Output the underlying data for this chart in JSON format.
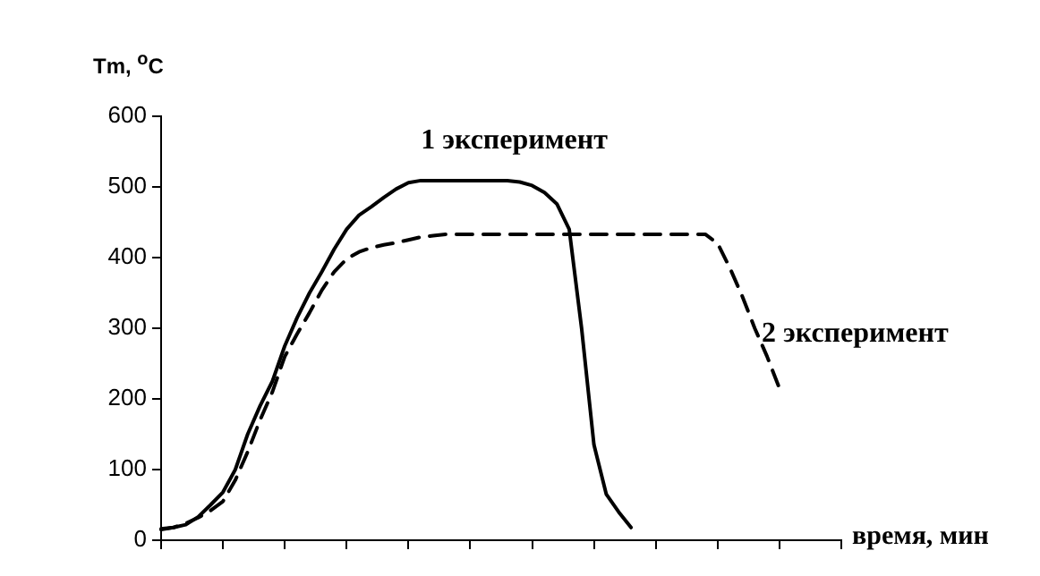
{
  "chart_data": {
    "type": "line",
    "ylabel": "Tm, $^{o}$C",
    "xlabel": "время, мин",
    "categories": [
      null,
      null,
      null,
      null,
      null,
      null,
      null,
      null,
      null,
      null,
      null,
      null,
      null,
      null,
      null,
      null,
      null,
      null,
      null,
      null,
      null,
      null,
      null,
      null,
      null,
      null,
      null,
      null,
      null,
      null,
      null,
      null,
      null,
      null,
      null,
      null,
      null,
      null,
      null,
      null,
      null,
      null,
      null,
      null,
      null,
      null,
      null,
      null,
      null,
      null,
      null,
      null,
      null,
      null,
      null,
      null
    ],
    "series": [
      {
        "name": "1 эксперимент",
        "color": "#000000",
        "line_style": "solid",
        "values": [
          16,
          18,
          22,
          33,
          50,
          68,
          100,
          150,
          190,
          225,
          275,
          315,
          350,
          380,
          412,
          440,
          460,
          472,
          485,
          497,
          506,
          509,
          509,
          509,
          509,
          509,
          509,
          509,
          509,
          507,
          502,
          492,
          476,
          440,
          300,
          135,
          65,
          40,
          18,
          null,
          null,
          null,
          null,
          null,
          null,
          null,
          null,
          null,
          null,
          null,
          null,
          null,
          null,
          null,
          null,
          null
        ]
      },
      {
        "name": "2 эксперимент",
        "color": "#000000",
        "line_style": "dashed",
        "values": [
          15,
          18,
          24,
          32,
          42,
          55,
          85,
          125,
          170,
          210,
          260,
          292,
          322,
          354,
          380,
          398,
          408,
          414,
          418,
          421,
          425,
          429,
          431,
          433,
          433,
          433,
          433,
          433,
          433,
          433,
          433,
          433,
          433,
          433,
          433,
          433,
          433,
          433,
          433,
          433,
          433,
          433,
          433,
          433,
          433,
          420,
          385,
          345,
          300,
          260,
          215,
          null,
          null,
          null,
          null,
          null
        ]
      }
    ],
    "ylim": [
      0,
      600
    ],
    "yticks": [
      0,
      100,
      200,
      300,
      400,
      500,
      600
    ],
    "grid": false,
    "legend": false,
    "marker": "none",
    "tick_labels": "y"
  }
}
